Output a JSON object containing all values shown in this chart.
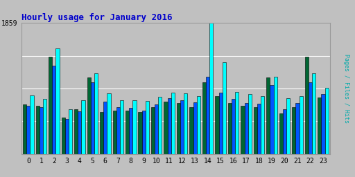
{
  "title": "Hourly usage for January 2016",
  "hours": [
    0,
    1,
    2,
    3,
    4,
    5,
    6,
    7,
    8,
    9,
    10,
    11,
    12,
    13,
    14,
    15,
    16,
    17,
    18,
    19,
    20,
    21,
    22,
    23
  ],
  "pages": [
    700,
    680,
    1380,
    520,
    640,
    1090,
    600,
    620,
    620,
    600,
    660,
    740,
    720,
    660,
    1020,
    820,
    720,
    680,
    660,
    1090,
    580,
    660,
    1380,
    800
  ],
  "files": [
    680,
    660,
    1250,
    500,
    610,
    1020,
    740,
    660,
    650,
    620,
    700,
    790,
    760,
    730,
    1100,
    870,
    780,
    720,
    710,
    980,
    640,
    720,
    1020,
    850
  ],
  "hits": [
    830,
    780,
    1500,
    640,
    760,
    1150,
    860,
    760,
    760,
    750,
    810,
    870,
    860,
    820,
    1859,
    1300,
    880,
    850,
    820,
    1100,
    790,
    820,
    1150,
    940
  ],
  "ymax": 1859,
  "ytick_label": "1859",
  "pages_color": "#006633",
  "files_color": "#0055ff",
  "hits_color": "#00ffff",
  "bg_color": "#c0c0c0",
  "plot_bg_color": "#c0c0c0",
  "title_color": "#0000cc",
  "ylabel_color": "#00aaaa",
  "grid_color": "#ffffff",
  "bar_edge_color": "#000000"
}
